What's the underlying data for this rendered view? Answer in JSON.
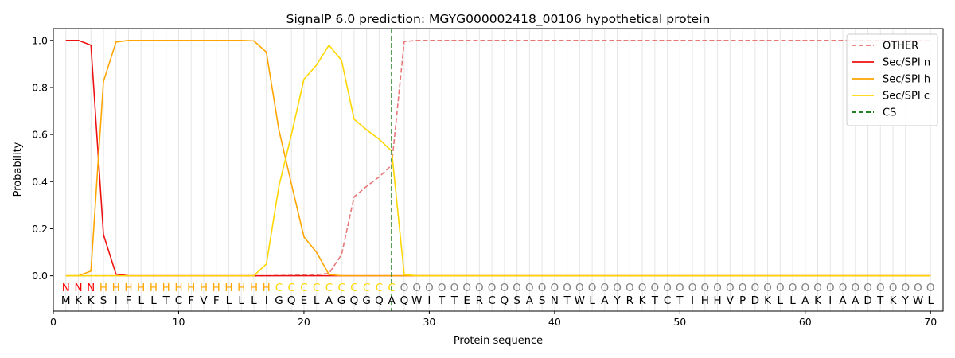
{
  "chart_data": {
    "type": "line",
    "title": "SignalP 6.0 prediction: MGYG000002418_00106 hypothetical protein",
    "xlabel": "Protein sequence",
    "ylabel": "Probability",
    "xlim": [
      0,
      71
    ],
    "ylim": [
      -0.15,
      1.05
    ],
    "xticks": [
      0,
      10,
      20,
      30,
      40,
      50,
      60,
      70
    ],
    "yticks": [
      0.0,
      0.2,
      0.4,
      0.6,
      0.8,
      1.0
    ],
    "ytick_labels": [
      "0.0",
      "0.2",
      "0.4",
      "0.6",
      "0.8",
      "1.0"
    ],
    "sequence": "MKKSIFLLTCFVFLLLIGQELAGQGQAQWITTERCQSASNTWLAYRKTCTIHHVPDKLLAKIAADTKYWL",
    "labels": "NNNHHHHHHHHHHHHHHCCCCCCCCCCOOOOOOOOOOOOOOOOOOOOOOOOOOOOOOOOOOOOOOOOOOO",
    "label_colors": {
      "N": "#ff0000",
      "H": "#ffa500",
      "C": "#ffd700",
      "O": "#808080"
    },
    "cs_position": 27,
    "legend_position": "top-right",
    "series": [
      {
        "name": "OTHER",
        "color": "#e87878",
        "style": "dashed",
        "values": [
          0,
          0,
          0,
          0,
          0,
          0,
          0,
          0,
          0,
          0,
          0,
          0,
          0,
          0,
          0,
          0,
          0,
          0.001,
          0.002,
          0.003,
          0.005,
          0.01,
          0.09,
          0.335,
          0.38,
          0.42,
          0.47,
          0.995,
          1,
          1,
          1,
          1,
          1,
          1,
          1,
          1,
          1,
          1,
          1,
          1,
          1,
          1,
          1,
          1,
          1,
          1,
          1,
          1,
          1,
          1,
          1,
          1,
          1,
          1,
          1,
          1,
          1,
          1,
          1,
          1,
          1,
          1,
          1,
          1,
          1,
          1,
          1,
          1,
          1,
          1
        ]
      },
      {
        "name": "Sec/SPI n",
        "color": "#ee1111",
        "style": "solid",
        "values": [
          1,
          1,
          0.98,
          0.175,
          0.007,
          0,
          0,
          0,
          0,
          0,
          0,
          0,
          0,
          0,
          0,
          0,
          0,
          0,
          0,
          0,
          0,
          0,
          0,
          0,
          0,
          0,
          0,
          0,
          0,
          0,
          0,
          0,
          0,
          0,
          0,
          0,
          0,
          0,
          0,
          0,
          0,
          0,
          0,
          0,
          0,
          0,
          0,
          0,
          0,
          0,
          0,
          0,
          0,
          0,
          0,
          0,
          0,
          0,
          0,
          0,
          0,
          0,
          0,
          0,
          0,
          0,
          0,
          0,
          0,
          0
        ]
      },
      {
        "name": "Sec/SPI h",
        "color": "#ffa500",
        "style": "solid",
        "values": [
          0,
          0,
          0.02,
          0.825,
          0.993,
          1,
          1,
          1,
          1,
          1,
          1,
          1,
          1,
          1,
          1,
          0.998,
          0.95,
          0.62,
          0.39,
          0.165,
          0.1,
          0.005,
          0,
          0,
          0,
          0,
          0,
          0,
          0,
          0,
          0,
          0,
          0,
          0,
          0,
          0,
          0,
          0,
          0,
          0,
          0,
          0,
          0,
          0,
          0,
          0,
          0,
          0,
          0,
          0,
          0,
          0,
          0,
          0,
          0,
          0,
          0,
          0,
          0,
          0,
          0,
          0,
          0,
          0,
          0,
          0,
          0,
          0,
          0,
          0
        ]
      },
      {
        "name": "Sec/SPI c",
        "color": "#ffd700",
        "style": "solid",
        "values": [
          0,
          0,
          0,
          0,
          0,
          0,
          0,
          0,
          0,
          0,
          0,
          0,
          0,
          0,
          0,
          0,
          0.05,
          0.38,
          0.6,
          0.835,
          0.895,
          0.98,
          0.915,
          0.665,
          0.62,
          0.58,
          0.53,
          0.005,
          0,
          0,
          0,
          0,
          0,
          0,
          0,
          0,
          0,
          0,
          0,
          0,
          0,
          0,
          0,
          0,
          0,
          0,
          0,
          0,
          0,
          0,
          0,
          0,
          0,
          0,
          0,
          0,
          0,
          0,
          0,
          0,
          0,
          0,
          0,
          0,
          0,
          0,
          0,
          0,
          0,
          0
        ]
      }
    ],
    "cs_legend": {
      "name": "CS",
      "color": "#007000",
      "style": "dashed"
    }
  }
}
